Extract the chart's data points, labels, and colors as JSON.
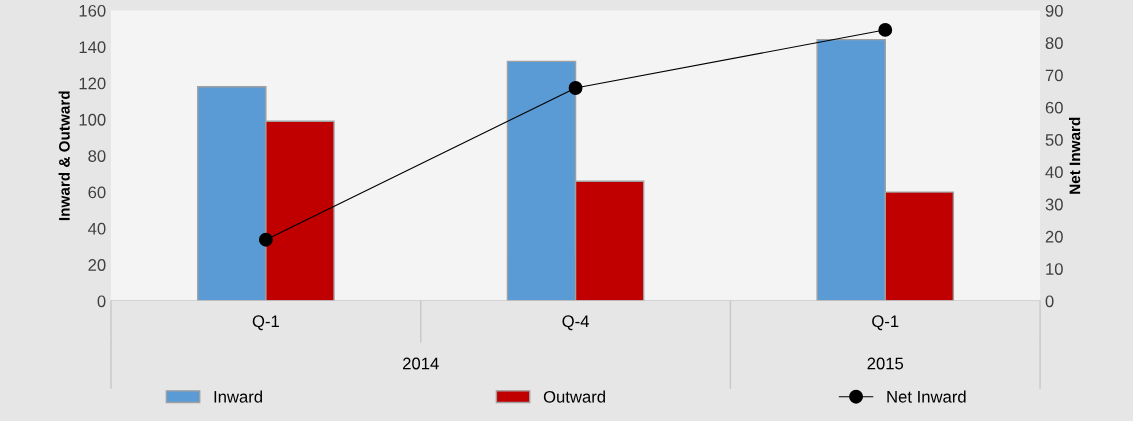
{
  "chart_data": {
    "type": "bar",
    "categories": [
      "Q-1",
      "Q-4",
      "Q-1"
    ],
    "ylabel": "Inward & Outward",
    "y2label": "Net Inward",
    "series": [
      {
        "name": "Inward",
        "color": "#5b9bd5",
        "values": [
          118,
          132,
          144
        ]
      },
      {
        "name": "Outward",
        "color": "#c00000",
        "values": [
          99,
          66,
          60
        ]
      },
      {
        "name": "Net Inward",
        "type": "line",
        "axis": "y2",
        "color": "#000000",
        "values": [
          19,
          66,
          84
        ],
        "marker": "circle"
      }
    ],
    "annotations": [
      "2014",
      "2015"
    ],
    "ylim": [
      0,
      160
    ],
    "yticks": [
      0,
      20,
      40,
      60,
      80,
      100,
      120,
      140,
      160
    ],
    "y2lim": [
      0,
      90
    ],
    "y2ticks": [
      0,
      10,
      20,
      30,
      40,
      50,
      60,
      70,
      80,
      90
    ],
    "grid": false,
    "legend": "bottom"
  }
}
